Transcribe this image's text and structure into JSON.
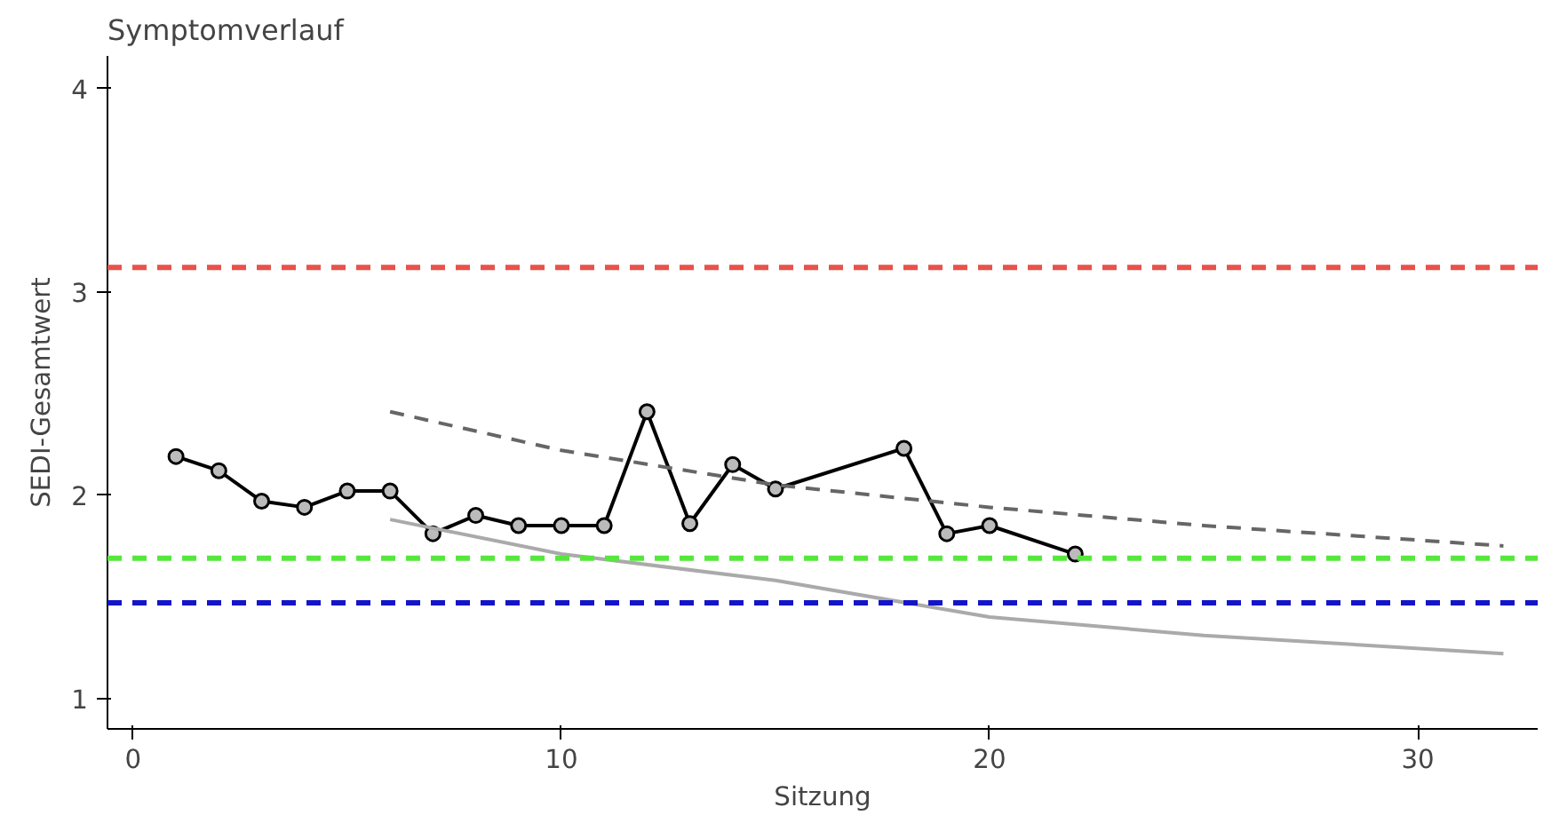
{
  "chart_data": {
    "type": "line",
    "title": "Symptomverlauf",
    "xlabel": "Sitzung",
    "ylabel": "SEDI-Gesamtwert",
    "xlim": [
      -0.6,
      32.8
    ],
    "ylim": [
      0.85,
      4.16
    ],
    "xticks": [
      0,
      10,
      20,
      30
    ],
    "yticks": [
      1,
      2,
      3,
      4
    ],
    "grid": false,
    "series": [
      {
        "color": "#000000",
        "marker": "circle",
        "line_style": "solid",
        "x": [
          1,
          2,
          3,
          4,
          5,
          6,
          7,
          8,
          9,
          10,
          11,
          12,
          13,
          14,
          15,
          18,
          19,
          20,
          22
        ],
        "values": [
          2.19,
          2.12,
          1.97,
          1.94,
          2.02,
          2.02,
          1.81,
          1.9,
          1.85,
          1.85,
          1.85,
          2.41,
          1.86,
          2.15,
          2.03,
          2.23,
          1.81,
          1.85,
          1.71
        ]
      },
      {
        "color": "#666666",
        "marker": "none",
        "line_style": "dashed",
        "x": [
          6,
          10,
          15,
          20,
          25,
          32
        ],
        "values": [
          2.41,
          2.22,
          2.05,
          1.94,
          1.85,
          1.75
        ]
      },
      {
        "color": "#aaaaaa",
        "marker": "none",
        "line_style": "solid",
        "x": [
          6,
          10,
          15,
          20,
          25,
          32
        ],
        "values": [
          1.88,
          1.71,
          1.58,
          1.4,
          1.31,
          1.22
        ]
      }
    ],
    "ref_lines": [
      {
        "axis": "y",
        "value": 3.12,
        "color": "#e8524a",
        "line_style": "dashed"
      },
      {
        "axis": "y",
        "value": 1.69,
        "color": "#55e83c",
        "line_style": "dashed"
      },
      {
        "axis": "y",
        "value": 1.47,
        "color": "#1414c8",
        "line_style": "dashed"
      }
    ]
  }
}
